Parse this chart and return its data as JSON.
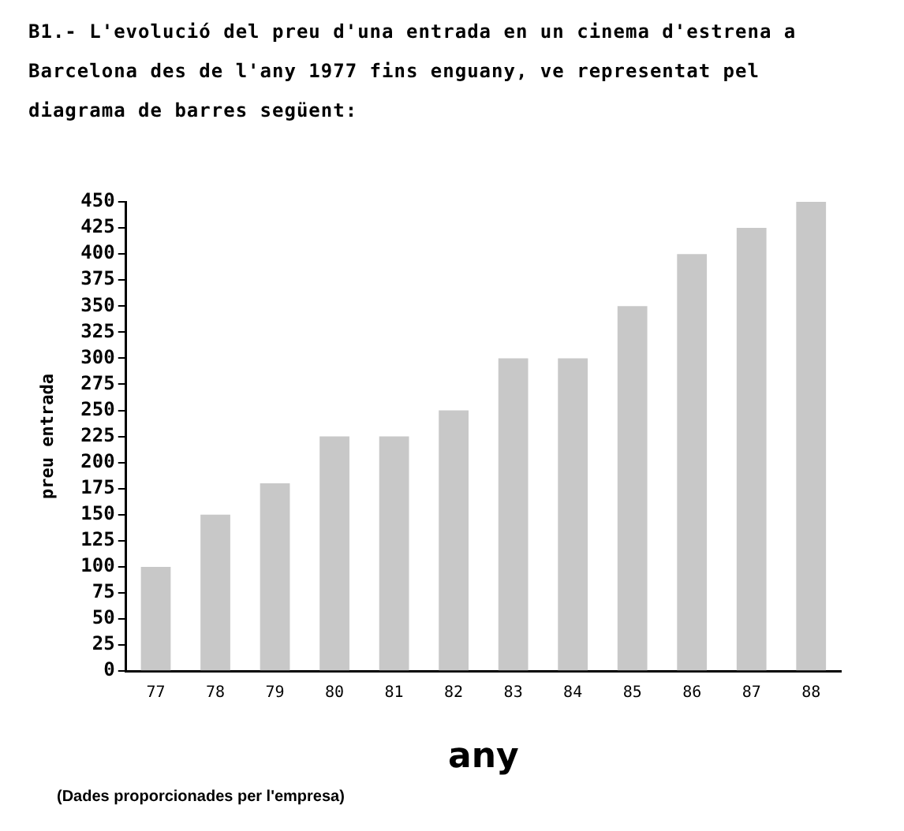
{
  "chart_data": {
    "type": "bar",
    "title": "B1.- L'evolució del preu d'una entrada en un cinema d'estrena a Barcelona des de l'any 1977 fins enguany, ve representat pel diagrama de barres següent:",
    "categories": [
      "77",
      "78",
      "79",
      "80",
      "81",
      "82",
      "83",
      "84",
      "85",
      "86",
      "87",
      "88"
    ],
    "values": [
      100,
      150,
      180,
      225,
      225,
      250,
      300,
      300,
      350,
      400,
      425,
      450
    ],
    "color": "#c8c8c8",
    "xlabel": "any",
    "ylabel": "preu entrada",
    "ylim": [
      0,
      450
    ],
    "yticks": [
      0,
      25,
      50,
      75,
      100,
      125,
      150,
      175,
      200,
      225,
      250,
      275,
      300,
      325,
      350,
      375,
      400,
      425,
      450
    ],
    "grid": false,
    "legend": false,
    "annotations": [
      "(Dades proporcionades per l'empresa)"
    ]
  }
}
